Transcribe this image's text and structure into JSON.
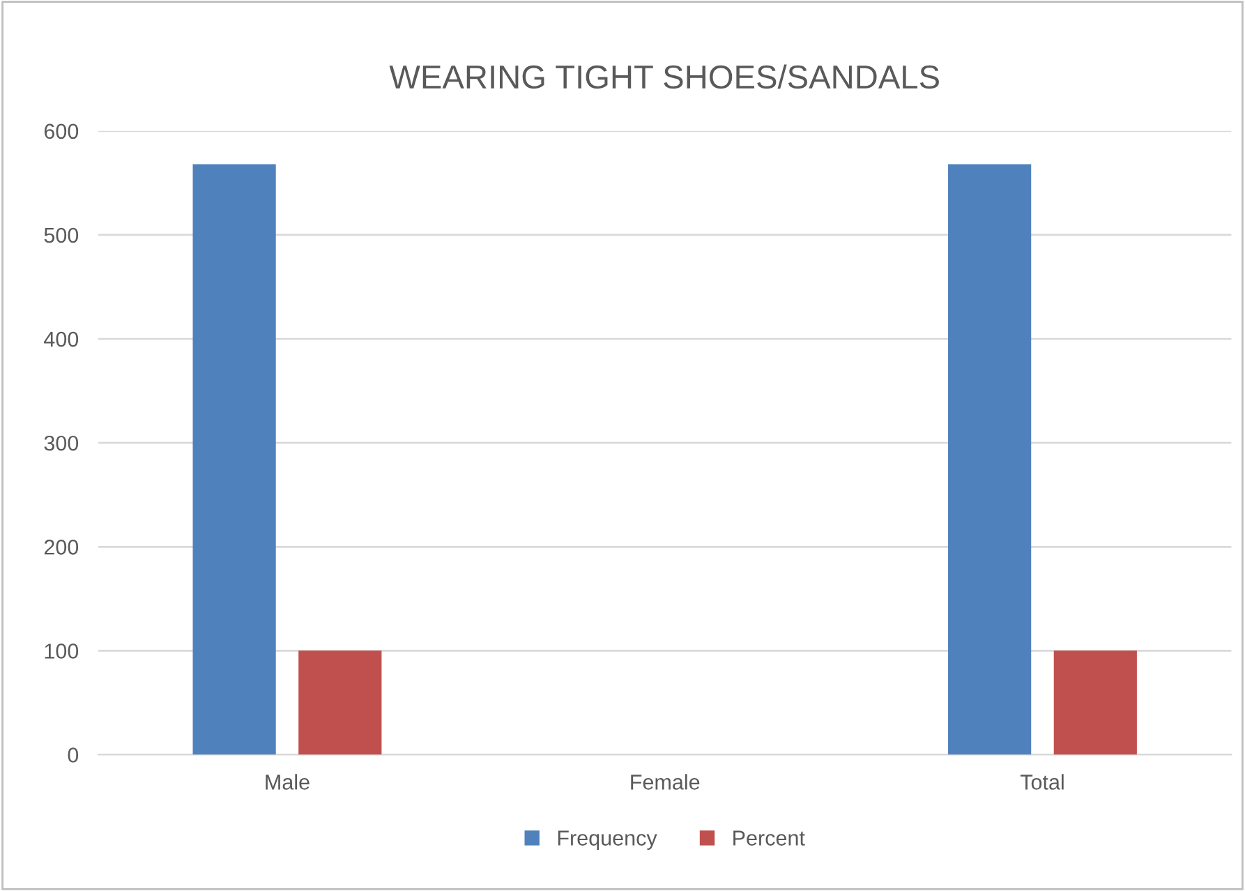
{
  "chart_data": {
    "type": "bar",
    "title": "WEARING TIGHT SHOES/SANDALS",
    "categories": [
      "Male",
      "Female",
      "Total"
    ],
    "series": [
      {
        "name": "Frequency",
        "color": "#4f81bd",
        "values": [
          568,
          0,
          568
        ]
      },
      {
        "name": "Percent",
        "color": "#c0504d",
        "values": [
          100,
          0,
          100
        ]
      }
    ],
    "ylim": [
      0,
      600
    ],
    "yticks": [
      0,
      100,
      200,
      300,
      400,
      500,
      600
    ],
    "grid": "y",
    "legend": "bottom"
  }
}
